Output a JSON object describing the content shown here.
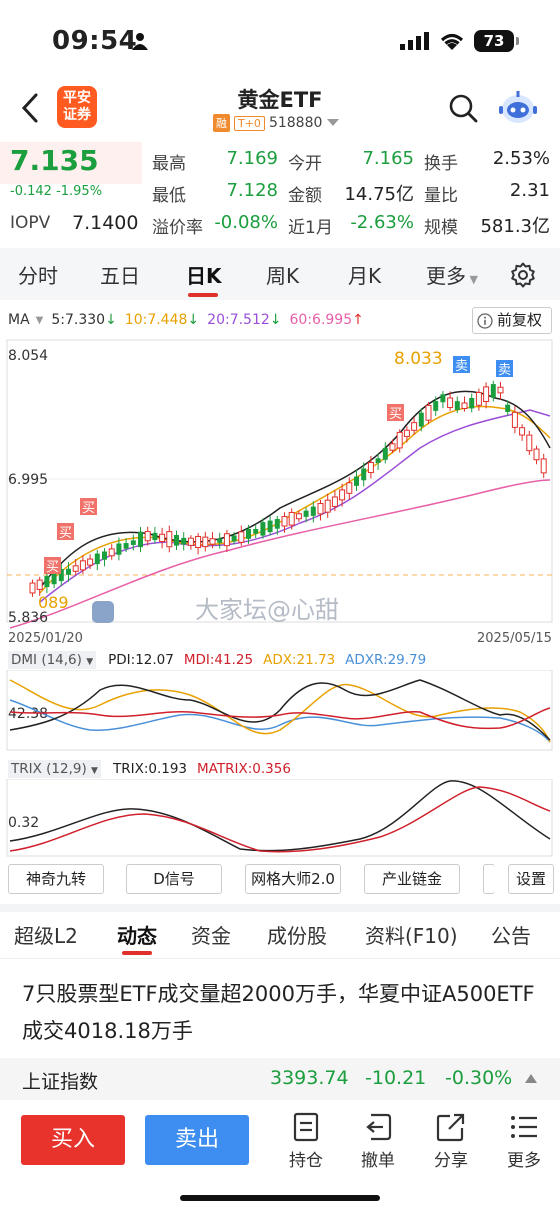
{
  "status": {
    "time": "09:54",
    "battery": "73"
  },
  "nav": {
    "broker_logo": "平安\n证券",
    "title": "黄金ETF",
    "tag_margin": "融",
    "tag_t0": "T+0",
    "code": "518880"
  },
  "quote": {
    "price": "7.135",
    "change": "-0.142",
    "change_pct": "-1.95%",
    "iopv_label": "IOPV",
    "iopv_value": "7.1400",
    "fields": [
      {
        "label": "最高",
        "value": "7.169"
      },
      {
        "label": "今开",
        "value": "7.165"
      },
      {
        "label": "换手",
        "value": "2.53%"
      },
      {
        "label": "最低",
        "value": "7.128"
      },
      {
        "label": "金额",
        "value": "14.75亿"
      },
      {
        "label": "量比",
        "value": "2.31"
      },
      {
        "label": "溢价率",
        "value": "-0.08%"
      },
      {
        "label": "近1月",
        "value": "-2.63%"
      },
      {
        "label": "规模",
        "value": "581.3亿"
      }
    ]
  },
  "period_tabs": [
    "分时",
    "五日",
    "日K",
    "周K",
    "月K",
    "更多"
  ],
  "chart_header": {
    "ma_label": "MA",
    "ma5": "5:7.330",
    "ma10": "10:7.448",
    "ma20": "20:7.512",
    "ma60": "60:6.995",
    "adjust": "前复权"
  },
  "kchart": {
    "y_max": "8.054",
    "y_mid": "6.995",
    "y_min": "5.836",
    "high_mark": "8.033",
    "low_mark": "089",
    "start_date": "2025/01/20",
    "end_date": "2025/05/15",
    "buy_label": "买",
    "sell_label": "卖",
    "watermark": "大家坛@心甜"
  },
  "dmi": {
    "name": "DMI (14,6)",
    "pdi": "PDI:12.07",
    "mdi": "MDI:41.25",
    "adx": "ADX:21.73",
    "adxr": "ADXR:29.79",
    "level": "42.38"
  },
  "trix": {
    "name": "TRIX (12,9)",
    "trix": "TRIX:0.193",
    "matrix": "MATRIX:0.356",
    "level": "0.32"
  },
  "tools": [
    "神奇九转",
    "D信号",
    "网格大师2.0",
    "产业链金",
    "设置"
  ],
  "section_tabs": [
    "超级L2",
    "动态",
    "资金",
    "成份股",
    "资料(F10)",
    "公告"
  ],
  "news": "7只股票型ETF成交量超2000万手，华夏中证A500ETF成交4018.18万手",
  "index": {
    "name": "上证指数",
    "value": "3393.74",
    "change": "-10.21",
    "pct": "-0.30%"
  },
  "actions": {
    "buy": "买入",
    "sell": "卖出",
    "position": "持仓",
    "cancel": "撤单",
    "share": "分享",
    "more": "更多"
  },
  "colors": {
    "up": "#e0302b",
    "down": "#1b9e3e",
    "accent": "#ff5a1f"
  }
}
